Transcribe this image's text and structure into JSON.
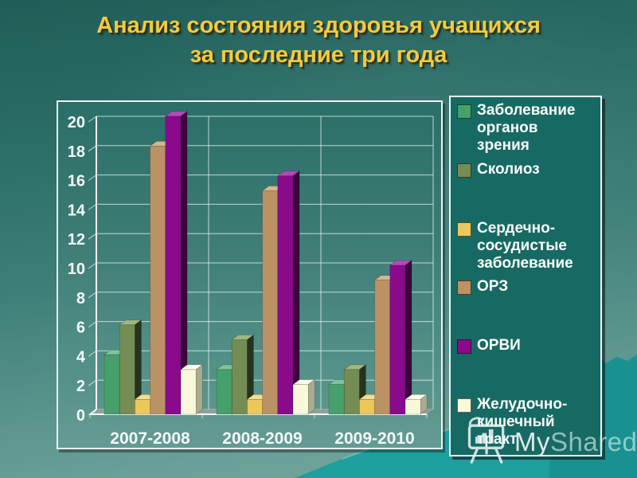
{
  "slide": {
    "title_line1": "Анализ состояния здоровья учащихся",
    "title_line2": "за последние три года",
    "title_color": "#F2CB3E",
    "background_top_color": "#215D58",
    "background_bottom_color": "#78ABA1",
    "mountain_color": "#1E9E9C"
  },
  "chart_data": {
    "type": "bar",
    "style": "3d-clustered-column",
    "title": "",
    "xlabel": "",
    "ylabel": "",
    "categories": [
      "2007-2008",
      "2008-2009",
      "2009-2010"
    ],
    "series": [
      {
        "name": "Заболевание органов зрения",
        "color": "#46A06C",
        "top": "#7FC49B",
        "side": "#1C5434",
        "values": [
          4,
          3,
          2
        ]
      },
      {
        "name": "Сколиоз",
        "color": "#758D55",
        "top": "#A3B581",
        "side": "#26331A",
        "values": [
          6,
          5,
          3
        ]
      },
      {
        "name": "Сердечно-сосудистые заболевание",
        "color": "#EDC75B",
        "top": "#F4DE92",
        "side": "#8F7423",
        "values": [
          1,
          1,
          1
        ]
      },
      {
        "name": "ОРЗ",
        "color": "#BA9264",
        "top": "#D5B68D",
        "side": "#6E5334",
        "values": [
          18,
          15,
          9
        ]
      },
      {
        "name": "ОРВИ",
        "color": "#8A0A8C",
        "top": "#B748B8",
        "side": "#3A033C",
        "values": [
          20,
          16,
          10
        ]
      },
      {
        "name": "Желудочно-кишечный тракт",
        "color": "#F9F9D9",
        "top": "#FFFFF0",
        "side": "#ABAB8D",
        "values": [
          3,
          2,
          1
        ]
      }
    ],
    "ylim": [
      0,
      20
    ],
    "ytick_step": 2,
    "grid": true,
    "legend_position": "right"
  },
  "watermark": {
    "text_my": "My",
    "text_shared": "Shared"
  }
}
